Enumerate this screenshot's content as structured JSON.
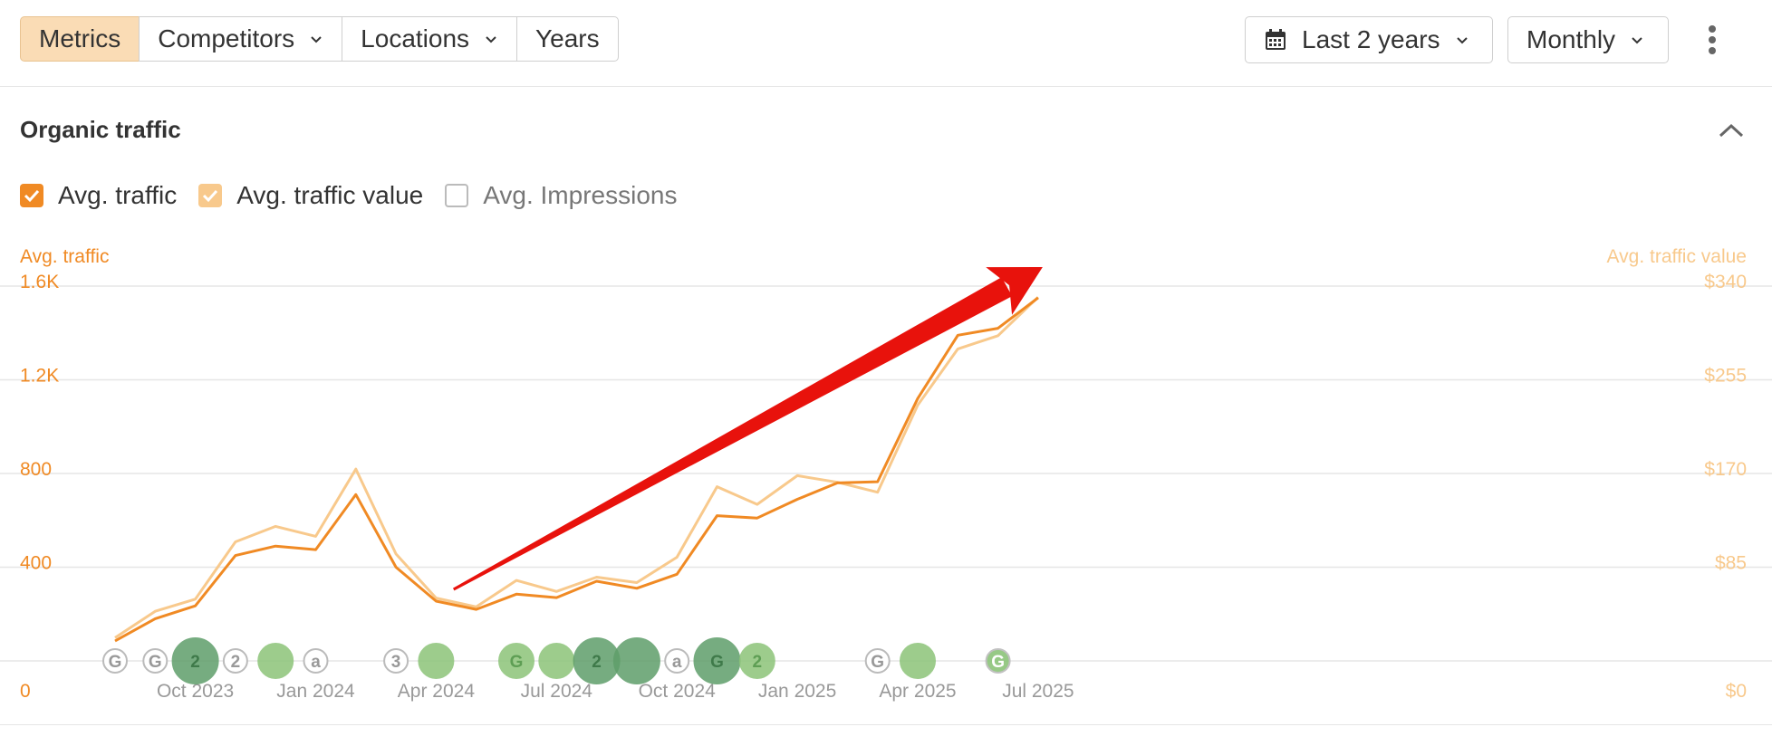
{
  "toolbar": {
    "tabs": [
      {
        "label": "Metrics",
        "active": true,
        "dropdown": false
      },
      {
        "label": "Competitors",
        "active": false,
        "dropdown": true
      },
      {
        "label": "Locations",
        "active": false,
        "dropdown": true
      },
      {
        "label": "Years",
        "active": false,
        "dropdown": false
      }
    ],
    "date_range": "Last 2 years",
    "granularity": "Monthly"
  },
  "section": {
    "title": "Organic traffic"
  },
  "legend": [
    {
      "label": "Avg. traffic",
      "checked": true,
      "color": "#f08a24"
    },
    {
      "label": "Avg. traffic value",
      "checked": true,
      "color": "#f8c98c"
    },
    {
      "label": "Avg. Impressions",
      "checked": false,
      "color": "#bbbbbb"
    }
  ],
  "chart_data": {
    "type": "line",
    "left_axis_label": "Avg. traffic",
    "right_axis_label": "Avg. traffic value",
    "x_ticks": [
      "Oct 2023",
      "Jan 2024",
      "Apr 2024",
      "Jul 2024",
      "Oct 2024",
      "Jan 2025",
      "Apr 2025",
      "Jul 2025"
    ],
    "y_ticks_left": [
      "0",
      "400",
      "800",
      "1.2K",
      "1.6K"
    ],
    "y_ticks_right": [
      "$0",
      "$85",
      "$170",
      "$255",
      "$340"
    ],
    "ylim_left": [
      0,
      1600
    ],
    "ylim_right": [
      0,
      340
    ],
    "x": [
      "2023-08",
      "2023-09",
      "2023-10",
      "2023-11",
      "2023-12",
      "2024-01",
      "2024-02",
      "2024-03",
      "2024-04",
      "2024-05",
      "2024-06",
      "2024-07",
      "2024-08",
      "2024-09",
      "2024-10",
      "2024-11",
      "2024-12",
      "2025-01",
      "2025-02",
      "2025-03",
      "2025-04",
      "2025-05",
      "2025-06",
      "2025-07"
    ],
    "series": [
      {
        "name": "Avg. traffic",
        "axis": "left",
        "color": "#f08a24",
        "values": [
          85,
          180,
          235,
          450,
          490,
          475,
          710,
          400,
          255,
          220,
          285,
          270,
          340,
          310,
          370,
          620,
          610,
          690,
          760,
          765,
          1120,
          1390,
          1420,
          1550
        ]
      },
      {
        "name": "Avg. traffic value",
        "axis": "right",
        "color": "#f8c98c",
        "values": [
          21,
          45,
          56,
          108,
          122,
          113,
          174,
          97,
          57,
          49,
          73,
          63,
          76,
          71,
          94,
          158,
          142,
          168,
          162,
          153,
          232,
          283,
          295,
          330
        ]
      }
    ],
    "annotation_markers": [
      {
        "x": "2023-08",
        "label": "G",
        "style": "outline"
      },
      {
        "x": "2023-09",
        "label": "G",
        "style": "outline"
      },
      {
        "x": "2023-10",
        "label": "2",
        "style": "dark-large"
      },
      {
        "x": "2023-11",
        "label": "2",
        "style": "outline"
      },
      {
        "x": "2023-12",
        "label": "",
        "style": "light"
      },
      {
        "x": "2024-01",
        "label": "a",
        "style": "outline"
      },
      {
        "x": "2024-03",
        "label": "3",
        "style": "outline"
      },
      {
        "x": "2024-04",
        "label": "",
        "style": "light"
      },
      {
        "x": "2024-06",
        "label": "G",
        "style": "light"
      },
      {
        "x": "2024-07",
        "label": "",
        "style": "light"
      },
      {
        "x": "2024-08",
        "label": "2",
        "style": "dark-large"
      },
      {
        "x": "2024-09",
        "label": "",
        "style": "dark-large"
      },
      {
        "x": "2024-10",
        "label": "a",
        "style": "outline"
      },
      {
        "x": "2024-11",
        "label": "G",
        "style": "dark-large"
      },
      {
        "x": "2024-12",
        "label": "2",
        "style": "light"
      },
      {
        "x": "2025-03",
        "label": "G",
        "style": "outline"
      },
      {
        "x": "2025-04",
        "label": "",
        "style": "light"
      },
      {
        "x": "2025-06",
        "label": "G",
        "style": "light-small"
      }
    ],
    "grid": true,
    "overlay": {
      "type": "arrow",
      "color": "#e8120c",
      "from": "2024-05",
      "to": "2025-07",
      "description_free": true
    }
  }
}
